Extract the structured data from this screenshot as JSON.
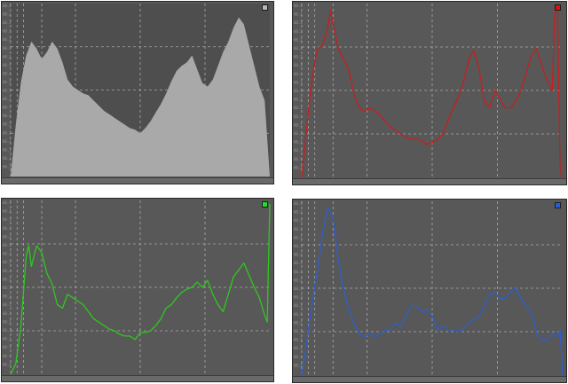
{
  "panels": [
    {
      "id": "luminance",
      "name": "histogram-luminance",
      "color": "#a9a9a9",
      "fill": true,
      "points": [
        [
          0,
          0
        ],
        [
          2,
          30
        ],
        [
          4,
          55
        ],
        [
          6,
          70
        ],
        [
          8,
          78
        ],
        [
          10,
          74
        ],
        [
          12,
          68
        ],
        [
          14,
          72
        ],
        [
          16,
          78
        ],
        [
          18,
          74
        ],
        [
          20,
          66
        ],
        [
          22,
          56
        ],
        [
          24,
          52
        ],
        [
          26,
          50
        ],
        [
          28,
          48
        ],
        [
          30,
          47
        ],
        [
          32,
          44
        ],
        [
          34,
          41
        ],
        [
          36,
          38
        ],
        [
          38,
          36
        ],
        [
          40,
          34
        ],
        [
          42,
          32
        ],
        [
          44,
          30
        ],
        [
          46,
          28
        ],
        [
          48,
          27
        ],
        [
          50,
          25
        ],
        [
          52,
          28
        ],
        [
          54,
          32
        ],
        [
          56,
          37
        ],
        [
          58,
          42
        ],
        [
          60,
          48
        ],
        [
          62,
          55
        ],
        [
          64,
          61
        ],
        [
          66,
          64
        ],
        [
          68,
          66
        ],
        [
          70,
          70
        ],
        [
          72,
          62
        ],
        [
          74,
          54
        ],
        [
          76,
          52
        ],
        [
          78,
          56
        ],
        [
          80,
          64
        ],
        [
          82,
          72
        ],
        [
          84,
          78
        ],
        [
          86,
          86
        ],
        [
          88,
          92
        ],
        [
          90,
          88
        ],
        [
          92,
          76
        ],
        [
          94,
          64
        ],
        [
          96,
          52
        ],
        [
          98,
          44
        ],
        [
          100,
          0
        ]
      ]
    },
    {
      "id": "red",
      "name": "histogram-red",
      "color": "#c42020",
      "fill": false,
      "points": [
        [
          0,
          0
        ],
        [
          2,
          30
        ],
        [
          4,
          58
        ],
        [
          6,
          74
        ],
        [
          8,
          76
        ],
        [
          10,
          86
        ],
        [
          11,
          96
        ],
        [
          12,
          88
        ],
        [
          14,
          74
        ],
        [
          16,
          68
        ],
        [
          18,
          62
        ],
        [
          20,
          48
        ],
        [
          22,
          40
        ],
        [
          24,
          38
        ],
        [
          26,
          40
        ],
        [
          28,
          38
        ],
        [
          30,
          36
        ],
        [
          32,
          32
        ],
        [
          34,
          29
        ],
        [
          36,
          27
        ],
        [
          38,
          25
        ],
        [
          40,
          23
        ],
        [
          42,
          22
        ],
        [
          44,
          22
        ],
        [
          46,
          21
        ],
        [
          48,
          19
        ],
        [
          50,
          20
        ],
        [
          52,
          22
        ],
        [
          54,
          25
        ],
        [
          56,
          32
        ],
        [
          58,
          40
        ],
        [
          60,
          46
        ],
        [
          62,
          55
        ],
        [
          64,
          68
        ],
        [
          66,
          73
        ],
        [
          68,
          62
        ],
        [
          70,
          44
        ],
        [
          72,
          40
        ],
        [
          74,
          50
        ],
        [
          76,
          45
        ],
        [
          78,
          40
        ],
        [
          80,
          40
        ],
        [
          82,
          44
        ],
        [
          84,
          50
        ],
        [
          86,
          60
        ],
        [
          88,
          70
        ],
        [
          90,
          74
        ],
        [
          92,
          64
        ],
        [
          94,
          56
        ],
        [
          96,
          50
        ],
        [
          97,
          95
        ],
        [
          98,
          98
        ],
        [
          99,
          4
        ],
        [
          100,
          0
        ]
      ]
    },
    {
      "id": "green",
      "name": "histogram-green",
      "color": "#2ec81e",
      "fill": false,
      "points": [
        [
          0,
          0
        ],
        [
          2,
          6
        ],
        [
          4,
          28
        ],
        [
          6,
          68
        ],
        [
          7,
          74
        ],
        [
          8,
          62
        ],
        [
          10,
          74
        ],
        [
          12,
          70
        ],
        [
          14,
          58
        ],
        [
          16,
          52
        ],
        [
          18,
          40
        ],
        [
          20,
          38
        ],
        [
          22,
          46
        ],
        [
          24,
          44
        ],
        [
          26,
          42
        ],
        [
          28,
          40
        ],
        [
          30,
          36
        ],
        [
          32,
          32
        ],
        [
          34,
          30
        ],
        [
          36,
          28
        ],
        [
          38,
          26
        ],
        [
          40,
          25
        ],
        [
          42,
          23
        ],
        [
          44,
          22
        ],
        [
          46,
          22
        ],
        [
          48,
          20
        ],
        [
          50,
          24
        ],
        [
          52,
          24
        ],
        [
          54,
          25
        ],
        [
          56,
          28
        ],
        [
          58,
          32
        ],
        [
          60,
          38
        ],
        [
          62,
          40
        ],
        [
          64,
          44
        ],
        [
          66,
          47
        ],
        [
          68,
          49
        ],
        [
          70,
          50
        ],
        [
          72,
          53
        ],
        [
          74,
          50
        ],
        [
          76,
          54
        ],
        [
          78,
          46
        ],
        [
          80,
          40
        ],
        [
          82,
          36
        ],
        [
          84,
          46
        ],
        [
          86,
          56
        ],
        [
          88,
          60
        ],
        [
          90,
          64
        ],
        [
          92,
          57
        ],
        [
          94,
          50
        ],
        [
          96,
          44
        ],
        [
          98,
          34
        ],
        [
          99,
          30
        ],
        [
          100,
          98
        ]
      ]
    },
    {
      "id": "blue",
      "name": "histogram-blue",
      "color": "#2d5fcc",
      "fill": false,
      "points": [
        [
          0,
          0
        ],
        [
          2,
          20
        ],
        [
          4,
          42
        ],
        [
          6,
          60
        ],
        [
          8,
          82
        ],
        [
          10,
          96
        ],
        [
          11,
          94
        ],
        [
          12,
          90
        ],
        [
          14,
          66
        ],
        [
          16,
          50
        ],
        [
          18,
          38
        ],
        [
          20,
          30
        ],
        [
          22,
          24
        ],
        [
          24,
          22
        ],
        [
          26,
          24
        ],
        [
          28,
          22
        ],
        [
          30,
          24
        ],
        [
          32,
          26
        ],
        [
          34,
          26
        ],
        [
          36,
          30
        ],
        [
          38,
          28
        ],
        [
          40,
          34
        ],
        [
          42,
          40
        ],
        [
          44,
          40
        ],
        [
          46,
          36
        ],
        [
          48,
          38
        ],
        [
          50,
          34
        ],
        [
          52,
          26
        ],
        [
          54,
          28
        ],
        [
          56,
          26
        ],
        [
          58,
          26
        ],
        [
          60,
          25
        ],
        [
          62,
          27
        ],
        [
          64,
          30
        ],
        [
          66,
          32
        ],
        [
          68,
          34
        ],
        [
          70,
          40
        ],
        [
          72,
          46
        ],
        [
          74,
          48
        ],
        [
          76,
          44
        ],
        [
          78,
          44
        ],
        [
          80,
          48
        ],
        [
          82,
          50
        ],
        [
          84,
          44
        ],
        [
          86,
          40
        ],
        [
          88,
          36
        ],
        [
          90,
          24
        ],
        [
          92,
          20
        ],
        [
          94,
          20
        ],
        [
          96,
          24
        ],
        [
          98,
          22
        ],
        [
          99,
          26
        ],
        [
          100,
          0
        ]
      ]
    }
  ],
  "y_ticks": [
    "60.1",
    "60.1",
    "60.1",
    "60.1",
    "60.1",
    "60.1",
    "60.1",
    "60.1",
    "60.1",
    "60.1",
    "60.1",
    "60.1",
    "60.1",
    "60.1",
    "60.1",
    "60.1",
    "60.1",
    "60.1",
    "60.1",
    "60.1"
  ]
}
